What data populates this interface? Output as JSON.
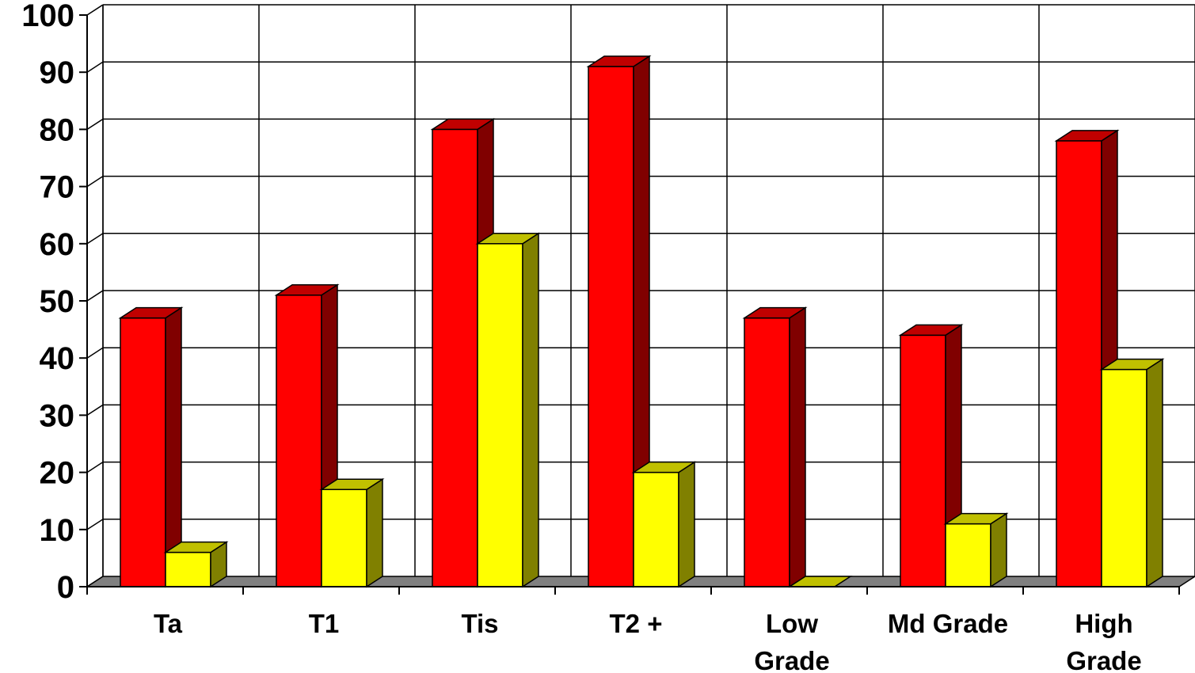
{
  "chart_data": {
    "type": "bar",
    "style": "3d-clustered-column",
    "categories": [
      "Ta",
      "T1",
      "Tis",
      "T2 +",
      "Low Grade",
      "Md Grade",
      "High Grade"
    ],
    "category_lines": [
      [
        "Ta"
      ],
      [
        "T1"
      ],
      [
        "Tis"
      ],
      [
        "T2 +"
      ],
      [
        "Low",
        "Grade"
      ],
      [
        "Md Grade"
      ],
      [
        "High",
        "Grade"
      ]
    ],
    "series": [
      {
        "values": [
          47,
          51,
          80,
          91,
          47,
          44,
          78
        ],
        "color": "#ff0000",
        "side_color": "#800000",
        "top_color": "#c00000"
      },
      {
        "values": [
          6,
          17,
          60,
          20,
          0,
          11,
          38
        ],
        "color": "#ffff00",
        "side_color": "#808000",
        "top_color": "#c0c000"
      }
    ],
    "ylim": [
      0,
      100
    ],
    "yticks": [
      0,
      10,
      20,
      30,
      40,
      50,
      60,
      70,
      80,
      90,
      100
    ],
    "grid": true,
    "title": "",
    "xlabel": "",
    "ylabel": ""
  }
}
